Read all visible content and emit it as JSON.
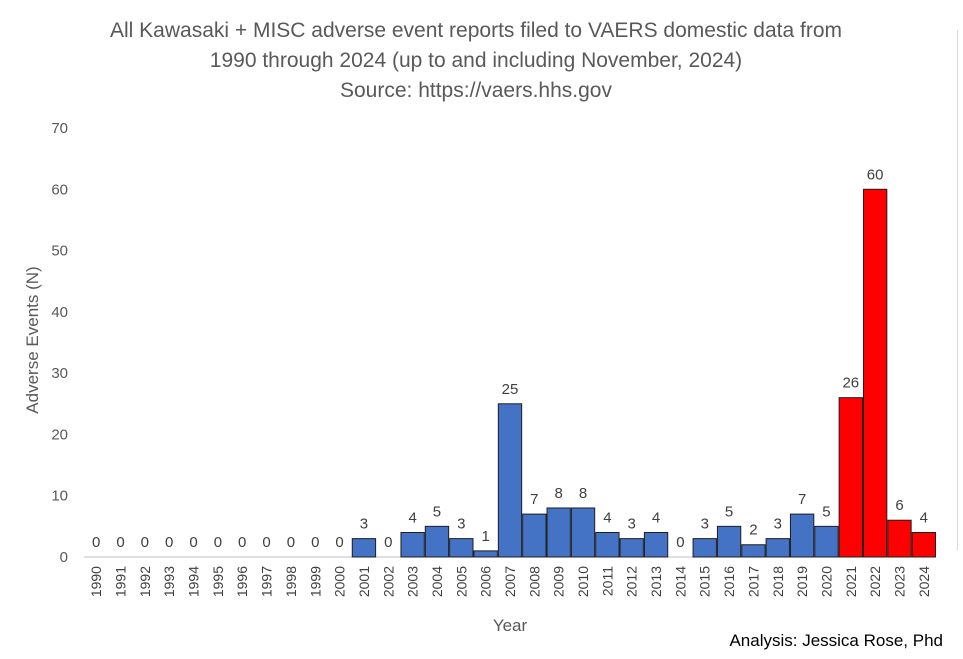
{
  "title_lines": [
    "All Kawasaki + MISC adverse event reports filed to VAERS domestic data from",
    "1990 through 2024 (up to and including November, 2024)",
    "Source: https://vaers.hhs.gov"
  ],
  "credit": "Analysis: Jessica Rose, Phd",
  "colors": {
    "default_bar": "#4472C4",
    "highlight_bar": "#FF0000",
    "bar_edge": "#1f1f1f"
  },
  "chart_data": {
    "type": "bar",
    "title": "All Kawasaki + MISC adverse event reports filed to VAERS domestic data from 1990 through 2024 (up to and including November, 2024) Source: https://vaers.hhs.gov",
    "xlabel": "Year",
    "ylabel": "Adverse Events (N)",
    "ylim": [
      0,
      70
    ],
    "yticks": [
      0,
      10,
      20,
      30,
      40,
      50,
      60,
      70
    ],
    "grid": false,
    "categories": [
      "1990",
      "1991",
      "1992",
      "1993",
      "1994",
      "1995",
      "1996",
      "1997",
      "1998",
      "1999",
      "2000",
      "2001",
      "2002",
      "2003",
      "2004",
      "2005",
      "2006",
      "2007",
      "2008",
      "2009",
      "2010",
      "2011",
      "2012",
      "2013",
      "2014",
      "2015",
      "2016",
      "2017",
      "2018",
      "2019",
      "2020",
      "2021",
      "2022",
      "2023",
      "2024"
    ],
    "values": [
      0,
      0,
      0,
      0,
      0,
      0,
      0,
      0,
      0,
      0,
      0,
      3,
      0,
      4,
      5,
      3,
      1,
      25,
      7,
      8,
      8,
      4,
      3,
      4,
      0,
      3,
      5,
      2,
      3,
      7,
      5,
      26,
      60,
      6,
      4
    ],
    "highlighted_categories": [
      "2021",
      "2022",
      "2023",
      "2024"
    ]
  }
}
